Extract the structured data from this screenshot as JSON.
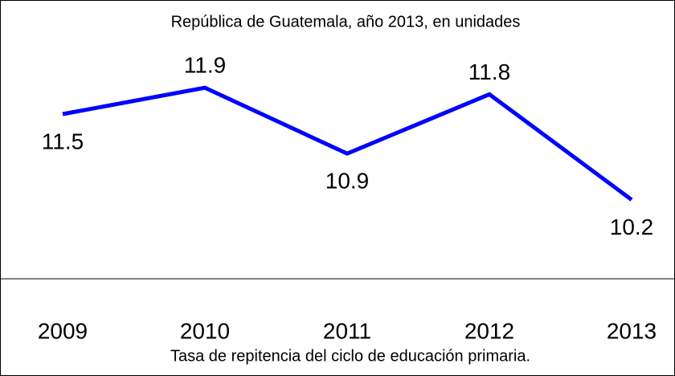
{
  "chart_data": {
    "type": "line",
    "title": "República de Guatemala, año 2013, en unidades",
    "x_label": "Tasa de repitencia del ciclo de educación primaria.",
    "categories": [
      "2009",
      "2010",
      "2011",
      "2012",
      "2013"
    ],
    "values": [
      11.5,
      11.9,
      10.9,
      11.8,
      10.2
    ],
    "color": "#0000ff",
    "ylim": [
      9,
      13
    ]
  }
}
